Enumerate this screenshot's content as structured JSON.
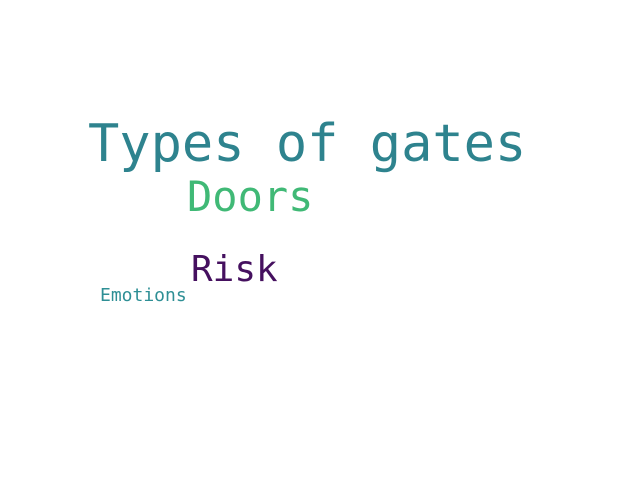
{
  "words": [
    {
      "text": "Types of gates",
      "color": "#2e838e"
    },
    {
      "text": "Doors",
      "color": "#40b976"
    },
    {
      "text": "Risk",
      "color": "#45105f"
    },
    {
      "text": "Emotions",
      "color": "#2e8f95"
    }
  ]
}
